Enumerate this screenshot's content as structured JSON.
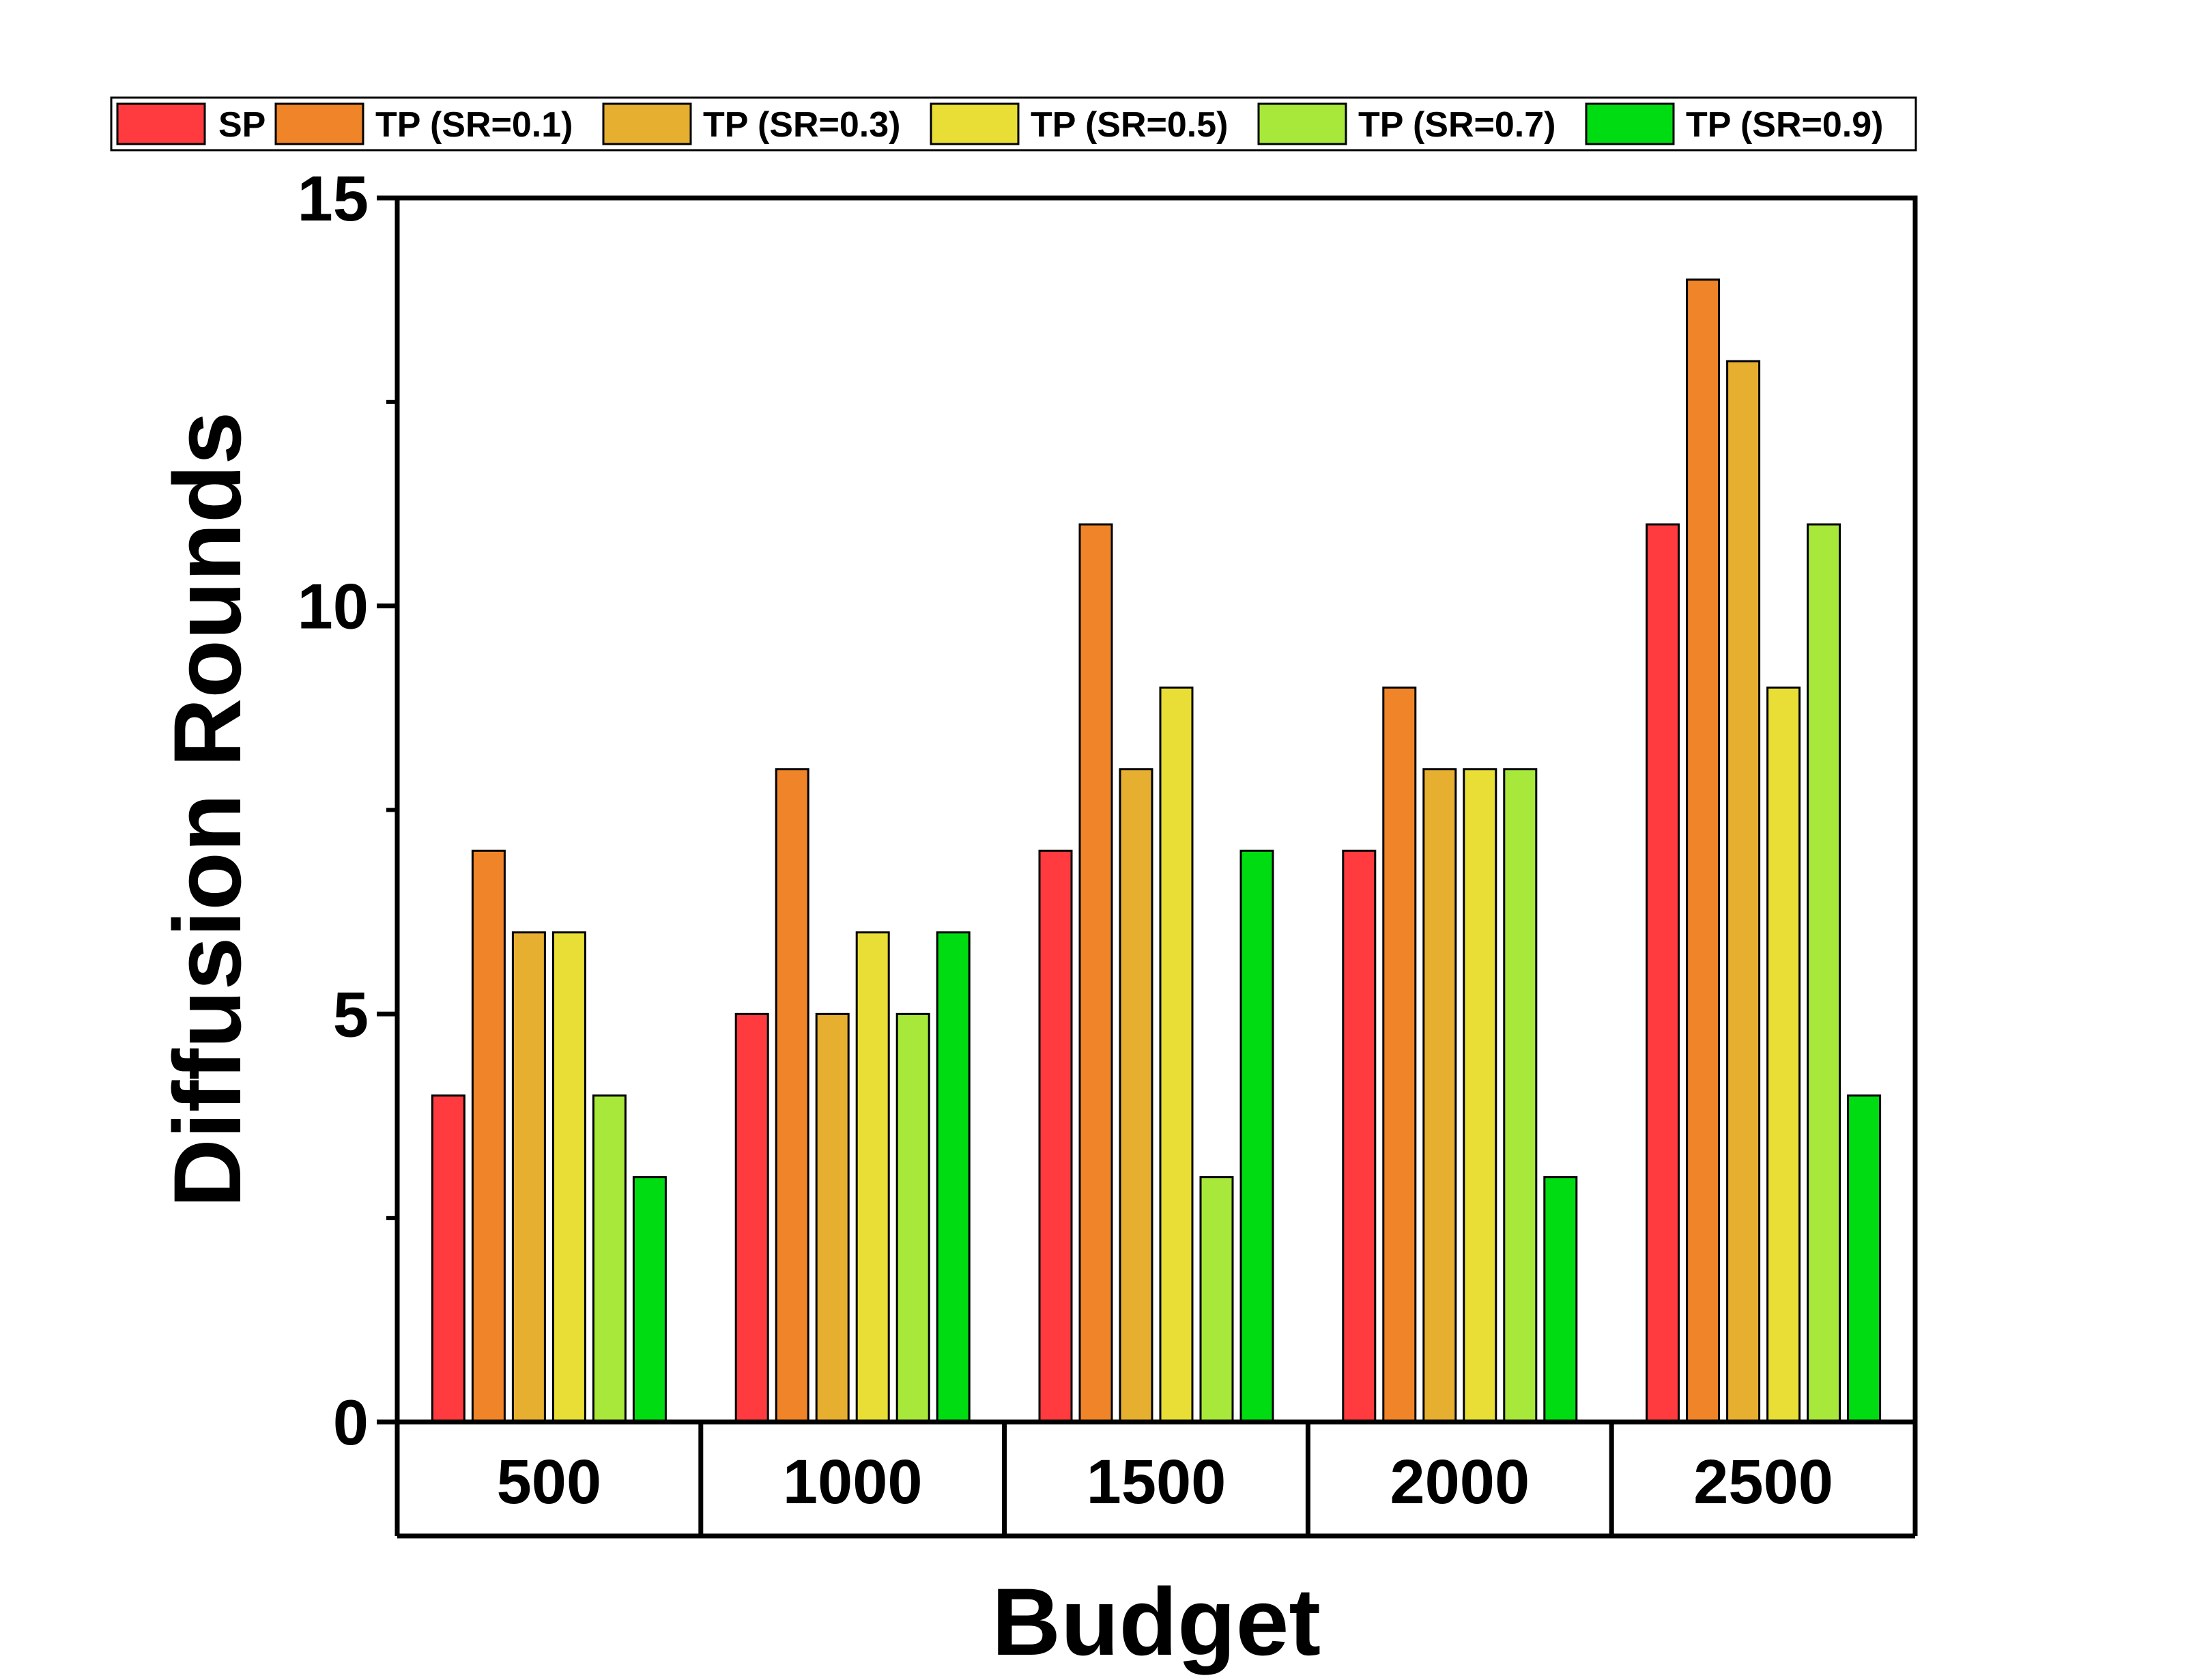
{
  "chart_data": {
    "type": "bar",
    "title": "",
    "xlabel": "Budget",
    "ylabel": "Diffusion Rounds",
    "ylim": [
      0,
      15
    ],
    "yticks": [
      0,
      5,
      10,
      15
    ],
    "grid": false,
    "legend_position": "top",
    "categories": [
      "500",
      "1000",
      "1500",
      "2000",
      "2500"
    ],
    "series": [
      {
        "name": "SP",
        "color": "#FF3B3F",
        "values": [
          4,
          5,
          7,
          7,
          11
        ]
      },
      {
        "name": "TP (SR=0.1)",
        "color": "#F08428",
        "values": [
          7,
          8,
          11,
          9,
          14
        ]
      },
      {
        "name": "TP (SR=0.3)",
        "color": "#E6AF30",
        "values": [
          6,
          5,
          8,
          8,
          13
        ]
      },
      {
        "name": "TP (SR=0.5)",
        "color": "#E8DE36",
        "values": [
          6,
          6,
          9,
          8,
          9
        ]
      },
      {
        "name": "TP (SR=0.7)",
        "color": "#A8E83A",
        "values": [
          4,
          5,
          3,
          8,
          11
        ]
      },
      {
        "name": "TP (SR=0.9)",
        "color": "#00DC12",
        "values": [
          3,
          6,
          7,
          3,
          4
        ]
      }
    ]
  }
}
